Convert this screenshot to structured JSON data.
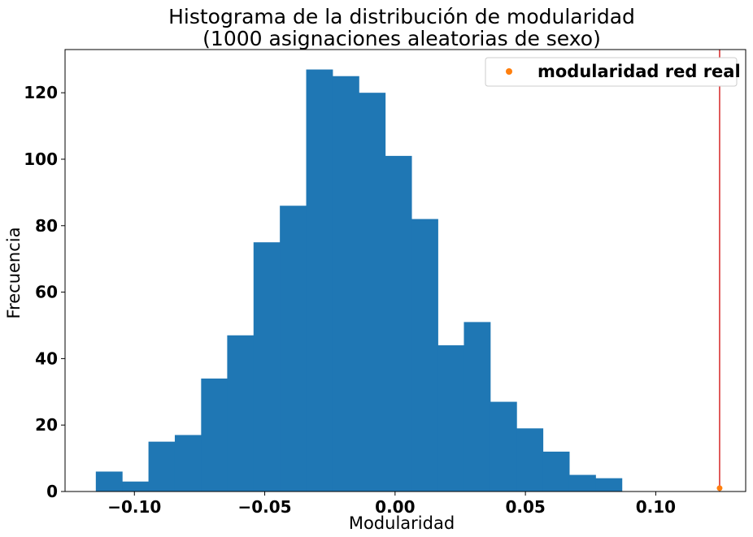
{
  "chart_data": {
    "type": "bar",
    "title": "Histograma de la distribución de modularidad",
    "subtitle": "(1000 asignaciones aleatorias de sexo)",
    "xlabel": "Modularidad",
    "ylabel": "Frecuencia",
    "xlim": [
      -0.1266,
      0.1345
    ],
    "ylim": [
      0,
      133
    ],
    "xticks": [
      -0.1,
      -0.05,
      0.0,
      0.05,
      0.1
    ],
    "xtick_labels": [
      "−0.10",
      "−0.05",
      "0.00",
      "0.05",
      "0.10"
    ],
    "yticks": [
      0,
      20,
      40,
      60,
      80,
      100,
      120
    ],
    "ytick_labels": [
      "0",
      "20",
      "40",
      "60",
      "80",
      "100",
      "120"
    ],
    "bin_edges": [
      -0.1148,
      -0.1047,
      -0.0946,
      -0.0845,
      -0.0744,
      -0.0644,
      -0.0543,
      -0.0442,
      -0.0341,
      -0.024,
      -0.0139,
      -0.0038,
      0.0063,
      0.0164,
      0.0264,
      0.0365,
      0.0466,
      0.0567,
      0.0668,
      0.0769,
      0.087,
      0.0971
    ],
    "values": [
      6,
      3,
      15,
      17,
      34,
      47,
      75,
      86,
      127,
      125,
      120,
      101,
      82,
      44,
      51,
      27,
      19,
      12,
      5,
      4,
      0
    ],
    "bar_color": "#1f77b4",
    "grid": false,
    "legend": {
      "location": "top-right",
      "entries": [
        {
          "label": "modularidad red real",
          "marker": "circle",
          "color": "#ff7f0e"
        }
      ]
    },
    "reference_line": {
      "x": 0.1245,
      "color": "#d62728"
    },
    "reference_point": {
      "x": 0.1245,
      "y": 1,
      "color": "#ff7f0e"
    }
  }
}
